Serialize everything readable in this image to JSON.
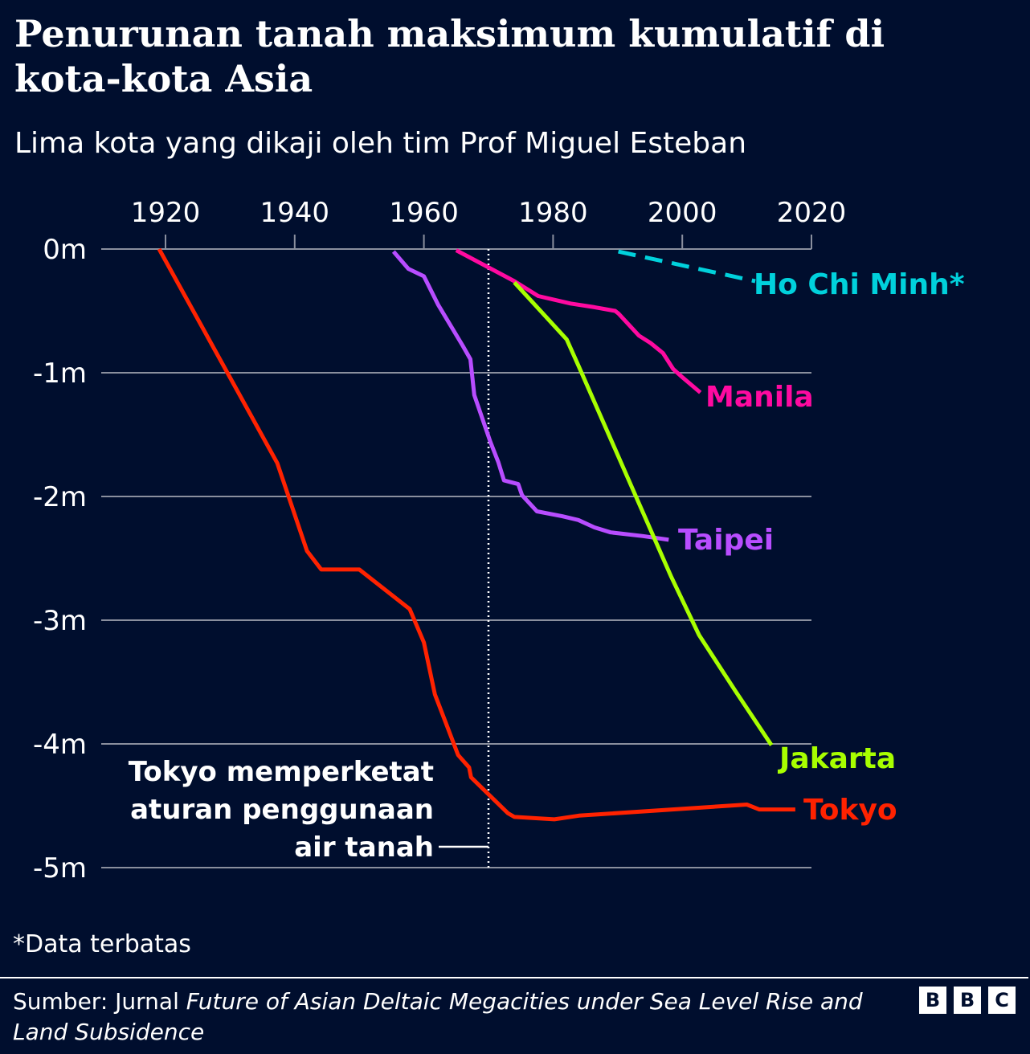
{
  "chart_data": {
    "type": "line",
    "title": "Penurunan tanah maksimum kumulatif di kota-kota Asia",
    "subtitle": "Lima kota yang dikaji oleh tim Prof Miguel Esteban",
    "xlim": [
      1920,
      2020
    ],
    "ylim": [
      -5,
      0
    ],
    "x_ticks": [
      "1920",
      "1940",
      "1960",
      "1980",
      "2000",
      "2020"
    ],
    "y_ticks": [
      "0m",
      "-1m",
      "-2m",
      "-3m",
      "-4m",
      "-5m"
    ],
    "grid": true,
    "series": [
      {
        "name": "Tokyo",
        "color": "#ff2200",
        "dashed": false,
        "x": [
          1919,
          1937.3,
          1941.9,
          1944.1,
          1950,
          1957.8,
          1960,
          1961.7,
          1963.4,
          1965.3,
          1967,
          1967.3,
          1973,
          1974,
          1980.2,
          1984,
          2010,
          2011.9,
          2017.5
        ],
        "y": [
          0,
          -1.73,
          -2.44,
          -2.59,
          -2.59,
          -2.91,
          -3.18,
          -3.6,
          -3.83,
          -4.09,
          -4.19,
          -4.27,
          -4.56,
          -4.59,
          -4.61,
          -4.58,
          -4.49,
          -4.53,
          -4.53
        ]
      },
      {
        "name": "Taipei",
        "color": "#b84dff",
        "dashed": false,
        "x": [
          1955.3,
          1957.6,
          1960,
          1962.2,
          1966,
          1967.2,
          1967.8,
          1970.3,
          1971.5,
          1972.4,
          1974.6,
          1975.2,
          1977.5,
          1981.4,
          1983.9,
          1986.4,
          1988.9,
          1993.9,
          1997.9
        ],
        "y": [
          -0.02,
          -0.16,
          -0.22,
          -0.45,
          -0.78,
          -0.89,
          -1.18,
          -1.56,
          -1.72,
          -1.87,
          -1.9,
          -1.99,
          -2.12,
          -2.16,
          -2.19,
          -2.25,
          -2.29,
          -2.32,
          -2.35
        ]
      },
      {
        "name": "Manila",
        "color": "#ff0aa0",
        "dashed": false,
        "x": [
          1965,
          1974,
          1977.7,
          1982.7,
          1986.4,
          1989.6,
          1990.1,
          1993.3,
          1995.1,
          1997,
          1998.6,
          2000.1,
          2002.8
        ],
        "y": [
          -0.01,
          -0.26,
          -0.38,
          -0.44,
          -0.47,
          -0.5,
          -0.52,
          -0.7,
          -0.76,
          -0.84,
          -0.97,
          -1.04,
          -1.16
        ]
      },
      {
        "name": "Jakarta",
        "color": "#a8ff00",
        "dashed": false,
        "x": [
          1974,
          1982.1,
          1983.9,
          1998.3,
          2002.6,
          2008.2,
          2013.8
        ],
        "y": [
          -0.27,
          -0.73,
          -0.94,
          -2.65,
          -3.12,
          -3.57,
          -4.01
        ]
      },
      {
        "name": "Ho Chi Minh*",
        "color": "#00d1dc",
        "dashed": true,
        "x": [
          1990.1,
          2011.3
        ],
        "y": [
          -0.02,
          -0.26
        ]
      }
    ],
    "annotation": {
      "x": 1970,
      "lines": [
        "Tokyo memperketat",
        "aturan penggunaan",
        "air tanah"
      ]
    }
  },
  "footnote": "*Data terbatas",
  "source": {
    "prefix": "Sumber: Jurnal ",
    "italic": "Future of Asian Deltaic Megacities under Sea Level Rise and Land Subsidence"
  },
  "logo": [
    "B",
    "B",
    "C"
  ]
}
